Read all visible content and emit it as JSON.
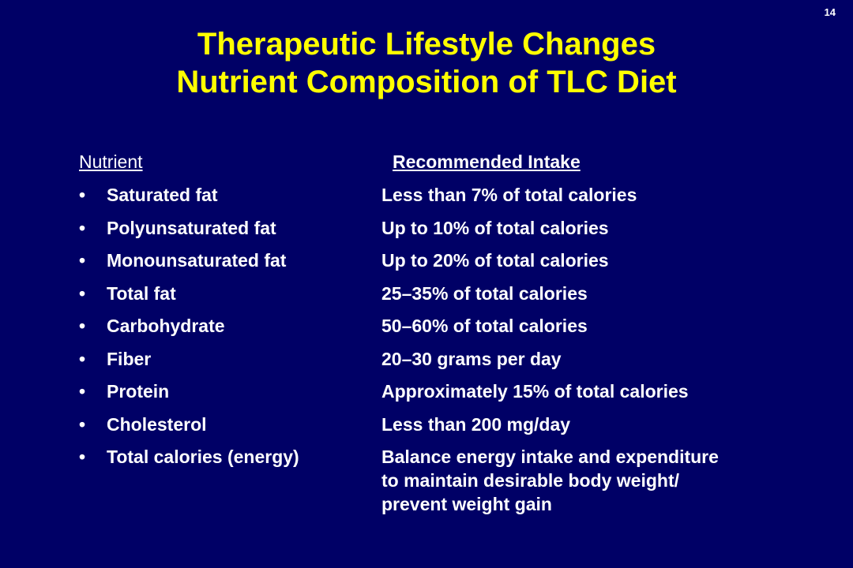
{
  "slide_number": "14",
  "title": {
    "line1": "Therapeutic Lifestyle Changes",
    "line2": "Nutrient Composition of TLC Diet"
  },
  "colors": {
    "background": "#000066",
    "title": "#ffff00",
    "text": "#ffffff"
  },
  "table": {
    "header_nutrient": "Nutrient",
    "header_intake": "Recommended Intake",
    "bullet": "•",
    "rows": [
      {
        "nutrient": "Saturated fat",
        "intake": [
          "Less than 7% of total calories"
        ]
      },
      {
        "nutrient": "Polyunsaturated fat",
        "intake": [
          "Up to 10% of total calories"
        ]
      },
      {
        "nutrient": "Monounsaturated fat",
        "intake": [
          "Up to 20% of total calories"
        ]
      },
      {
        "nutrient": "Total fat",
        "intake": [
          "25–35% of total calories"
        ]
      },
      {
        "nutrient": "Carbohydrate",
        "intake": [
          "50–60% of total calories"
        ]
      },
      {
        "nutrient": "Fiber",
        "intake": [
          "20–30 grams per day"
        ]
      },
      {
        "nutrient": "Protein",
        "intake": [
          "Approximately 15% of total calories"
        ]
      },
      {
        "nutrient": "Cholesterol",
        "intake": [
          "Less than 200 mg/day"
        ]
      },
      {
        "nutrient": "Total calories (energy)",
        "intake": [
          "Balance energy intake and expenditure",
          "to maintain desirable body weight/",
          "prevent weight gain"
        ]
      }
    ]
  }
}
